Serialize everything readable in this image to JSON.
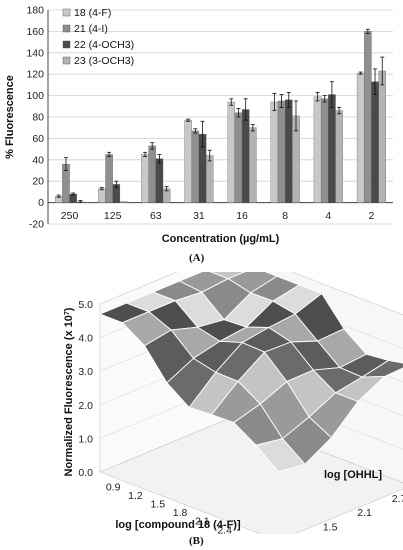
{
  "chart_data": [
    {
      "type": "bar",
      "panel_label": "(A)",
      "xlabel": "Concentration (µg/mL)",
      "ylabel": "% Fluorescence",
      "categories": [
        "250",
        "125",
        "63",
        "31",
        "16",
        "8",
        "4",
        "2"
      ],
      "ylim": [
        -20,
        180
      ],
      "yticks": [
        "-20",
        "0",
        "20",
        "40",
        "60",
        "80",
        "100",
        "120",
        "140",
        "160",
        "180"
      ],
      "legend_position": "top-left",
      "grid": true,
      "error_bars": true,
      "series": [
        {
          "name": "18 (4-F)",
          "color": "#c8c8c8",
          "values": [
            6,
            13,
            45,
            77,
            94,
            94,
            99,
            121
          ],
          "errors": [
            1,
            1,
            2,
            1,
            3,
            8,
            4,
            1
          ]
        },
        {
          "name": "21 (4-I)",
          "color": "#8f8f8f",
          "values": [
            36,
            45,
            53,
            67,
            84,
            95,
            97,
            160
          ],
          "errors": [
            6,
            2,
            3,
            2,
            4,
            6,
            3,
            2
          ]
        },
        {
          "name": "22 (4-OCH3)",
          "color": "#4a4a4a",
          "values": [
            8,
            17,
            41,
            64,
            87,
            96,
            101,
            113
          ],
          "errors": [
            1,
            3,
            4,
            12,
            10,
            7,
            12,
            12
          ]
        },
        {
          "name": "23 (3-OCH3)",
          "color": "#b3b3b3",
          "values": [
            1,
            1,
            13,
            44,
            70,
            81,
            86,
            123
          ],
          "errors": [
            1,
            0,
            2,
            5,
            3,
            14,
            3,
            13
          ]
        }
      ]
    },
    {
      "type": "surface",
      "panel_label": "(B)",
      "zlabel_main": "Normalized Fluorescence (x 10",
      "zlabel_sup": "7",
      "zlabel_end": ")",
      "xlabel": "log  [compound 18 (4-F)]",
      "ylabel": "log  [OHHL]",
      "x_ticks": [
        "0.9",
        "1.2",
        "1.5",
        "1.8",
        "2.1",
        "2.4",
        "2.7",
        "3.0"
      ],
      "y_ticks": [
        "1.5",
        "2.1",
        "2.7"
      ],
      "z_ticks": [
        "0.0",
        "1.0",
        "2.0",
        "3.0",
        "4.0",
        "5.0"
      ],
      "zlim": [
        0,
        5
      ]
    }
  ]
}
